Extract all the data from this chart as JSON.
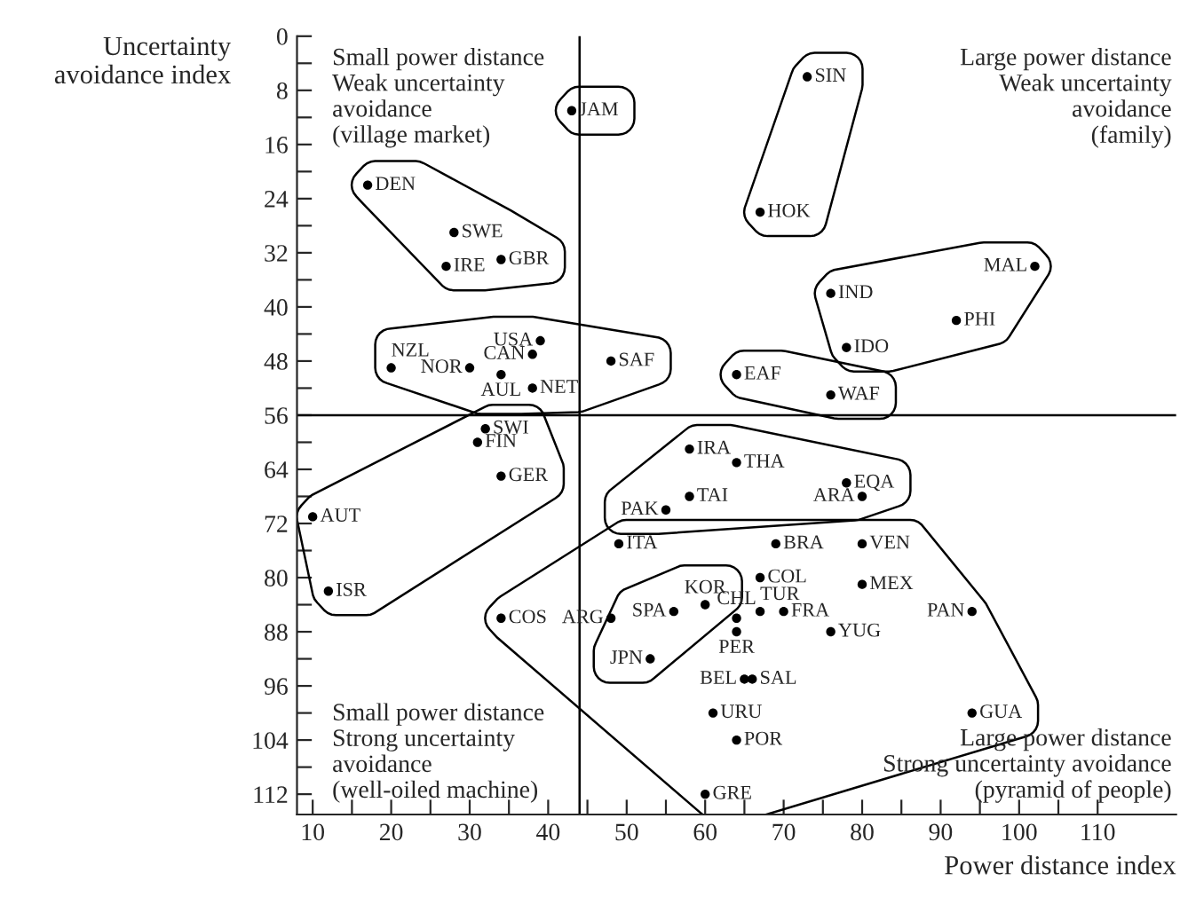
{
  "chart_data": {
    "type": "scatter",
    "xlabel": "Power distance index",
    "ylabel": "Uncertainty\navoidance index",
    "annotations": [
      "Small power distance\nWeak uncertainty\navoidance\n(village market)",
      "Large power distance\nWeak uncertainty\navoidance\n(family)",
      "Small power distance\nStrong uncertainty\navoidance\n(well-oiled machine)",
      "Large power distance\nStrong uncertainty avoidance\n(pyramid of people)"
    ],
    "x": [
      43,
      73,
      67,
      17,
      28,
      27,
      34,
      102,
      76,
      92,
      78,
      20,
      39,
      38,
      30,
      34,
      38,
      48,
      64,
      76,
      32,
      31,
      34,
      10,
      12,
      58,
      64,
      78,
      80,
      55,
      58,
      49,
      69,
      80,
      67,
      80,
      64,
      67,
      70,
      60,
      56,
      48,
      94,
      76,
      64,
      53,
      65,
      66,
      61,
      94,
      64,
      60,
      34
    ],
    "values": [
      11,
      6,
      26,
      22,
      29,
      34,
      33,
      34,
      38,
      42,
      46,
      49,
      45,
      47,
      49,
      50,
      52,
      48,
      50,
      53,
      58,
      60,
      65,
      71,
      82,
      61,
      63,
      66,
      68,
      70,
      68,
      75,
      75,
      75,
      80,
      81,
      86,
      85,
      85,
      84,
      85,
      86,
      85,
      88,
      88,
      92,
      95,
      95,
      100,
      100,
      104,
      112,
      86
    ],
    "value_labels": [
      "JAM",
      "SIN",
      "HOK",
      "DEN",
      "SWE",
      "IRE",
      "GBR",
      "MAL",
      "IND",
      "PHI",
      "IDO",
      "NZL",
      "USA",
      "CAN",
      "NOR",
      "AUL",
      "NET",
      "SAF",
      "EAF",
      "WAF",
      "SWI",
      "FIN",
      "GER",
      "AUT",
      "ISR",
      "IRA",
      "THA",
      "EQA",
      "ARA",
      "PAK",
      "TAI",
      "ITA",
      "BRA",
      "VEN",
      "COL",
      "MEX",
      "CHL",
      "TUR",
      "FRA",
      "KOR",
      "SPA",
      "ARG",
      "PAN",
      "YUG",
      "PER",
      "JPN",
      "BEL",
      "SAL",
      "URU",
      "GUA",
      "POR",
      "GRE",
      "COS"
    ],
    "color": "#000000",
    "marker": "circle",
    "xlim": [
      8,
      120
    ],
    "ylim": [
      115,
      0
    ],
    "xticks": [
      10,
      {
        "value": 15,
        "label": null
      },
      20,
      {
        "value": 25,
        "label": null
      },
      30,
      {
        "value": 35,
        "label": null
      },
      40,
      {
        "value": 45,
        "label": null
      },
      50,
      {
        "value": 55,
        "label": null
      },
      60,
      {
        "value": 65,
        "label": null
      },
      70,
      {
        "value": 75,
        "label": null
      },
      80,
      {
        "value": 85,
        "label": null
      },
      90,
      {
        "value": 95,
        "label": null
      },
      100,
      {
        "value": 105,
        "label": null
      },
      110
    ],
    "yticks": [
      0,
      {
        "value": 4,
        "label": null
      },
      8,
      {
        "value": 12,
        "label": null
      },
      16,
      {
        "value": 20,
        "label": null
      },
      24,
      {
        "value": 28,
        "label": null
      },
      32,
      {
        "value": 36,
        "label": null
      },
      40,
      {
        "value": 44,
        "label": null
      },
      48,
      {
        "value": 52,
        "label": null
      },
      56,
      {
        "value": 60,
        "label": null
      },
      64,
      {
        "value": 68,
        "label": null
      },
      72,
      {
        "value": 76,
        "label": null
      },
      80,
      {
        "value": 84,
        "label": null
      },
      88,
      {
        "value": 92,
        "label": null
      },
      96,
      {
        "value": 100,
        "label": null
      },
      104,
      {
        "value": 108,
        "label": null
      },
      112
    ],
    "ref_lines": [
      {
        "axis": "x",
        "value": 44,
        "color": "#000000"
      },
      {
        "axis": "y",
        "value": 56,
        "color": "#000000"
      }
    ],
    "grid": false
  }
}
